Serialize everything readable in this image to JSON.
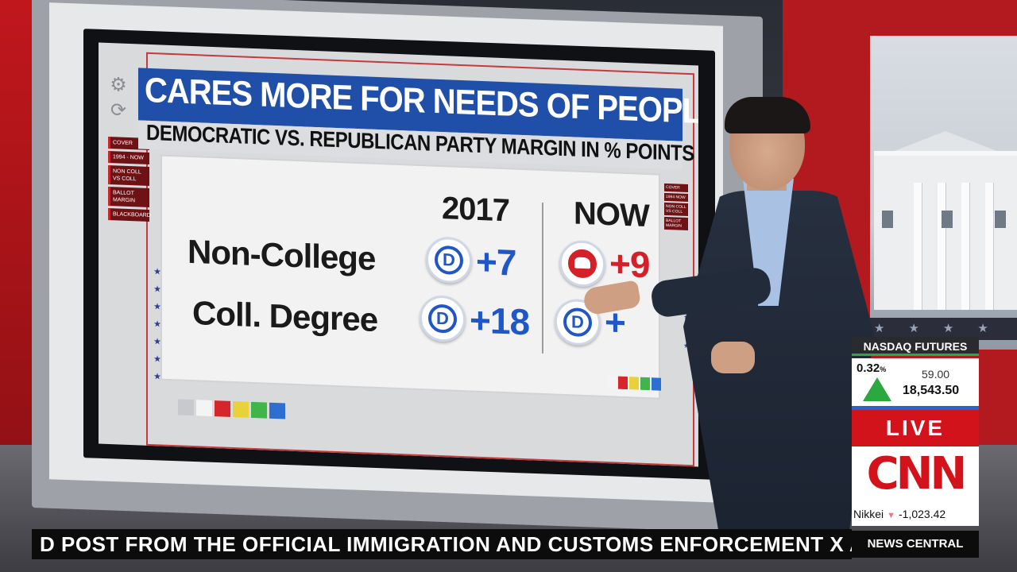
{
  "graphic": {
    "title": "CARES MORE FOR NEEDS OF PEOPLE LIKE YOU?",
    "subtitle": "DEMOCRATIC VS. REPUBLICAN PARTY MARGIN IN % POINTS",
    "columns": [
      "2017",
      "NOW"
    ],
    "rows": [
      {
        "label": "Non-College",
        "cells": [
          {
            "party": "D",
            "value": "+7"
          },
          {
            "party": "R",
            "value": "+9"
          }
        ]
      },
      {
        "label": "Coll. Degree",
        "cells": [
          {
            "party": "D",
            "value": "+18"
          },
          {
            "party": "D",
            "value": "+"
          }
        ]
      }
    ],
    "left_menu": [
      "COVER",
      "1994 - NOW",
      "NON COLL VS COLL",
      "BALLOT MARGIN",
      "BLACKBOARD"
    ],
    "right_menu": [
      "COVER",
      "1994 NOW",
      "NON COLL VS COLL",
      "BALLOT MARGIN"
    ],
    "swatch_colors": [
      "#c8c9cc",
      "#f4f4f4",
      "#d6262c",
      "#e8d23a",
      "#3fb54a",
      "#2d6fd1"
    ]
  },
  "ticker": {
    "text": "D POST FROM THE OFFICIAL IMMIGRATION AND CUSTOMS ENFORCEMENT X ACC"
  },
  "market": {
    "name": "NASDAQ FUTURES",
    "percent": "0.32",
    "percent_unit": "%",
    "change": "59.00",
    "level": "18,543.50",
    "nikkei_label": "Nikkei",
    "nikkei_value": "-1,023.42"
  },
  "network": {
    "live": "LIVE",
    "logo": "CNN",
    "show": "NEWS CENTRAL"
  },
  "colors": {
    "dem_blue": "#1f57c8",
    "rep_red": "#d42028",
    "cnn_red": "#d2131b",
    "market_up": "#2ca840"
  }
}
